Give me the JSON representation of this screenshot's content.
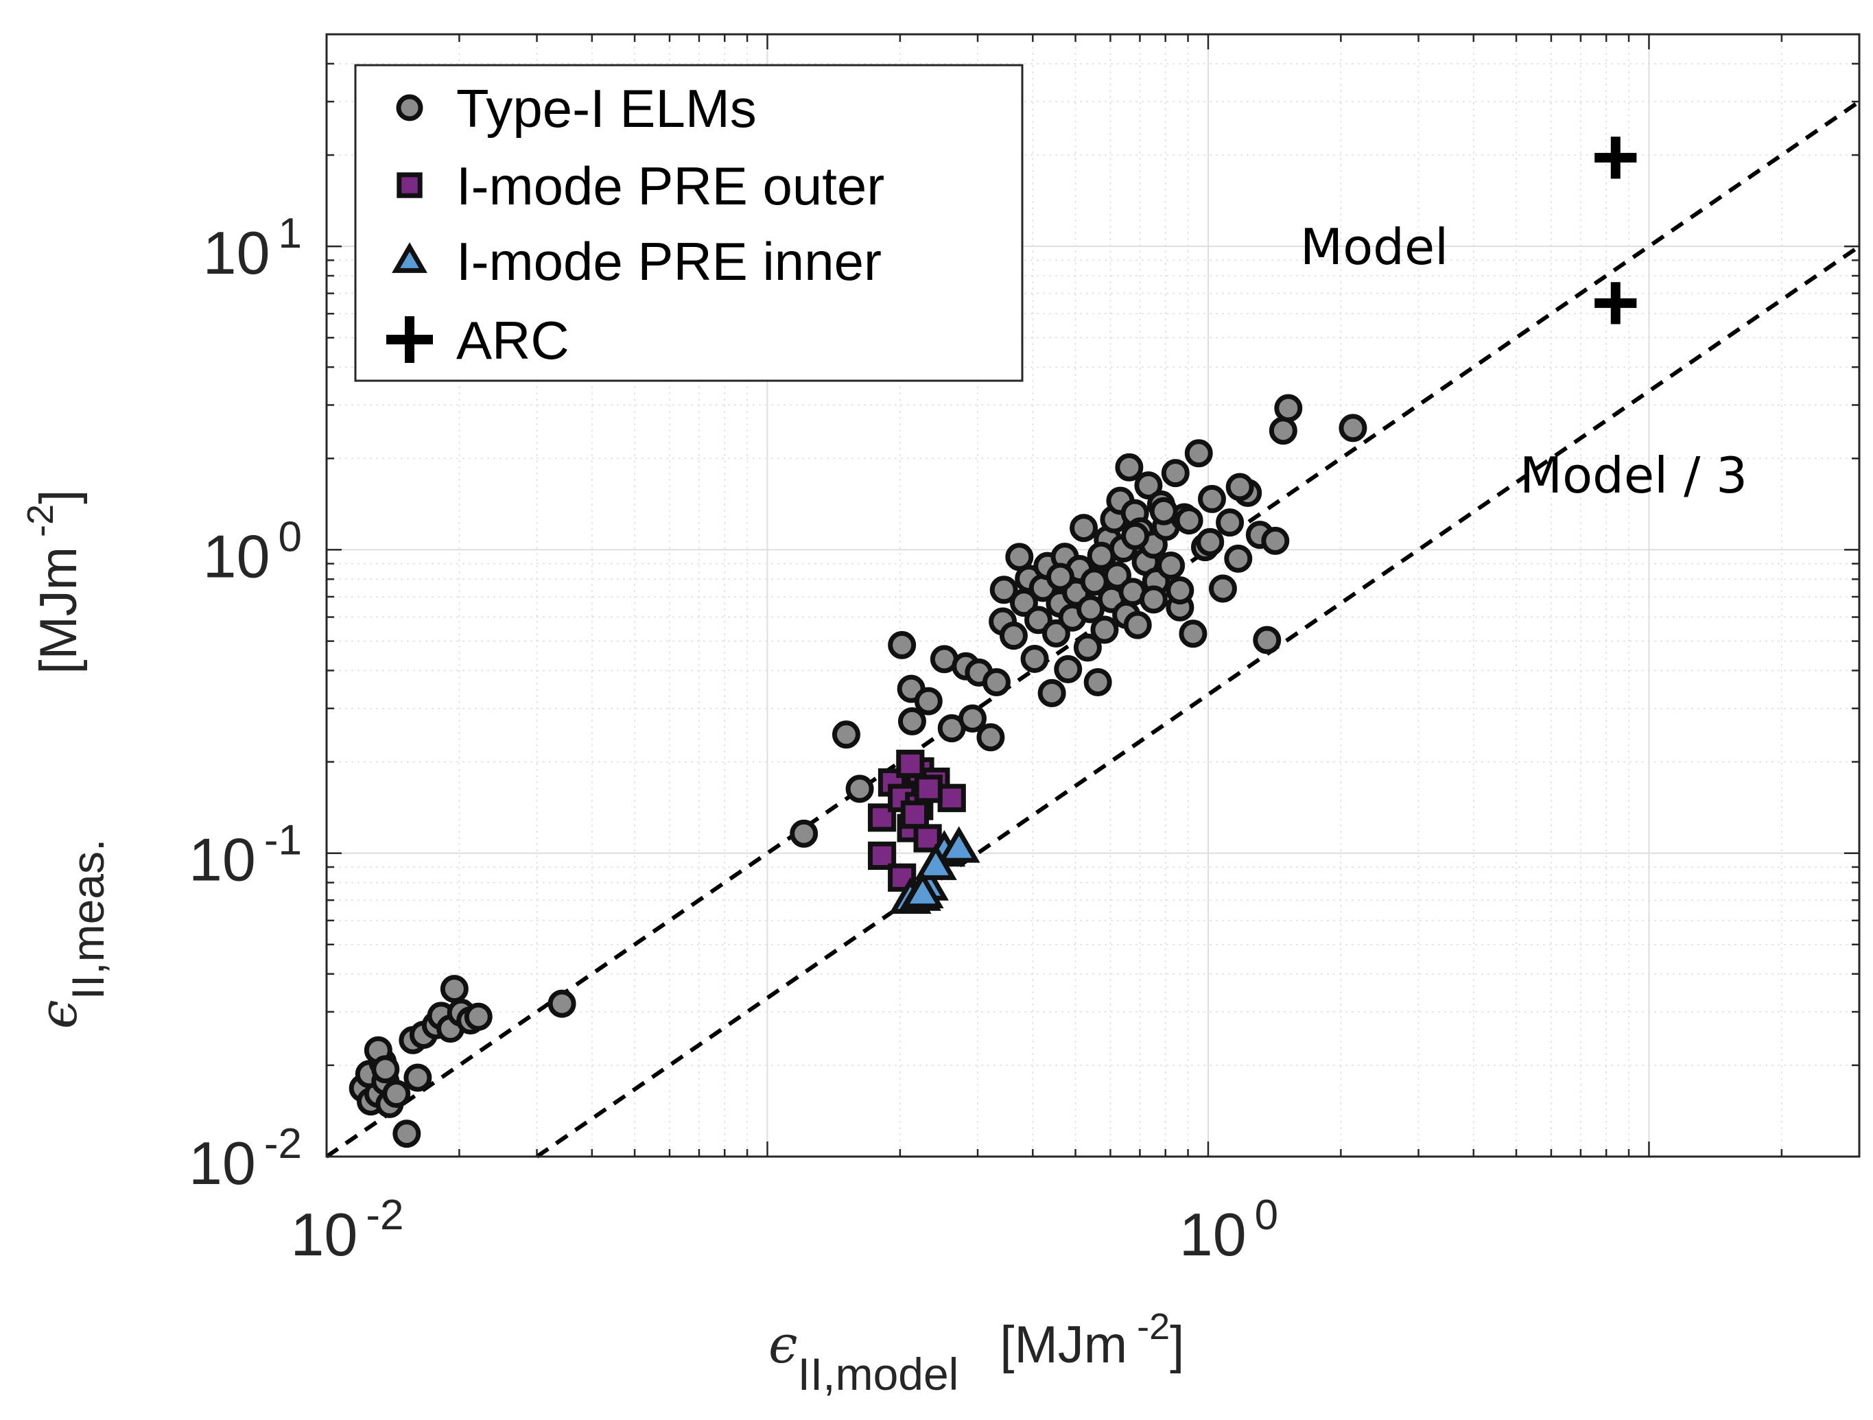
{
  "chart_data": {
    "type": "scatter",
    "xscale": "log",
    "yscale": "log",
    "xlim": [
      0.01,
      30
    ],
    "ylim": [
      0.01,
      50
    ],
    "grid": true,
    "xticks": [
      {
        "value": 0.01,
        "base": "10",
        "exp": "-2"
      },
      {
        "value": 1,
        "base": "10",
        "exp": "0"
      }
    ],
    "yticks": [
      {
        "value": 0.01,
        "base": "10",
        "exp": "-2"
      },
      {
        "value": 0.1,
        "base": "10",
        "exp": "-1"
      },
      {
        "value": 1,
        "base": "10",
        "exp": "0"
      },
      {
        "value": 10,
        "base": "10",
        "exp": "1"
      }
    ],
    "xlabel": {
      "symbol": "ϵ",
      "subscript": "II,model",
      "unit_open": "[MJm",
      "unit_exp": "-2",
      "unit_close": "]"
    },
    "ylabel": {
      "symbol": "ϵ",
      "subscript": "II,meas.",
      "unit_open": "[MJm",
      "unit_exp": "-2",
      "unit_close": "]"
    },
    "legend_position": "top-left",
    "legend": [
      {
        "label": "Type-I ELMs",
        "marker": "circle"
      },
      {
        "label": "I-mode PRE outer",
        "marker": "square"
      },
      {
        "label": "I-mode PRE inner",
        "marker": "triangle"
      },
      {
        "label": "ARC",
        "marker": "plus"
      }
    ],
    "lines": [
      {
        "name": "Model",
        "slope": 1,
        "label": "Model",
        "style": "dashed"
      },
      {
        "name": "Model / 3",
        "slope": 0.3333,
        "label": "Model / 3",
        "style": "dashed"
      }
    ],
    "colors": {
      "circle_fill": "#8c8c8c",
      "square_fill": "#7a2a82",
      "triangle_fill": "#5b9bd5",
      "edge": "#111111",
      "grid": "#dedede",
      "axis": "#262626"
    },
    "series": [
      {
        "name": "Type-I ELMs",
        "marker": "circle",
        "points": [
          [
            0.0121,
            0.0168
          ],
          [
            0.0126,
            0.0152
          ],
          [
            0.0131,
            0.0161
          ],
          [
            0.0125,
            0.0187
          ],
          [
            0.0134,
            0.0205
          ],
          [
            0.0131,
            0.0224
          ],
          [
            0.0136,
            0.0177
          ],
          [
            0.0139,
            0.0149
          ],
          [
            0.0144,
            0.0161
          ],
          [
            0.0136,
            0.0194
          ],
          [
            0.0152,
            0.0119
          ],
          [
            0.0157,
            0.0242
          ],
          [
            0.0161,
            0.0182
          ],
          [
            0.0166,
            0.0252
          ],
          [
            0.0177,
            0.0271
          ],
          [
            0.0182,
            0.0291
          ],
          [
            0.0191,
            0.0264
          ],
          [
            0.0195,
            0.0357
          ],
          [
            0.0202,
            0.0298
          ],
          [
            0.0212,
            0.0281
          ],
          [
            0.0221,
            0.0289
          ],
          [
            0.0342,
            0.0319
          ],
          [
            0.121,
            0.116
          ],
          [
            0.151,
            0.246
          ],
          [
            0.162,
            0.163
          ],
          [
            0.202,
            0.485
          ],
          [
            0.212,
            0.348
          ],
          [
            0.213,
            0.272
          ],
          [
            0.232,
            0.317
          ],
          [
            0.252,
            0.436
          ],
          [
            0.262,
            0.258
          ],
          [
            0.282,
            0.413
          ],
          [
            0.292,
            0.278
          ],
          [
            0.302,
            0.394
          ],
          [
            0.321,
            0.241
          ],
          [
            0.331,
            0.366
          ],
          [
            0.342,
            0.58
          ],
          [
            0.344,
            0.738
          ],
          [
            0.362,
            0.521
          ],
          [
            0.373,
            0.947
          ],
          [
            0.382,
            0.669
          ],
          [
            0.392,
            0.803
          ],
          [
            0.404,
            0.437
          ],
          [
            0.412,
            0.587
          ],
          [
            0.422,
            0.749
          ],
          [
            0.432,
            0.884
          ],
          [
            0.442,
            0.337
          ],
          [
            0.452,
            0.53
          ],
          [
            0.461,
            0.665
          ],
          [
            0.473,
            0.948
          ],
          [
            0.481,
            0.404
          ],
          [
            0.492,
            0.598
          ],
          [
            0.502,
            0.722
          ],
          [
            0.511,
            0.864
          ],
          [
            0.522,
            1.18
          ],
          [
            0.533,
            0.476
          ],
          [
            0.541,
            0.637
          ],
          [
            0.552,
            0.785
          ],
          [
            0.562,
            0.366
          ],
          [
            0.574,
            0.938
          ],
          [
            0.582,
            0.545
          ],
          [
            0.592,
            1.08
          ],
          [
            0.604,
            0.688
          ],
          [
            0.612,
            1.26
          ],
          [
            0.622,
            0.823
          ],
          [
            0.632,
            1.45
          ],
          [
            0.642,
            1.01
          ],
          [
            0.652,
            0.61
          ],
          [
            0.662,
            1.87
          ],
          [
            0.674,
            0.726
          ],
          [
            0.682,
            1.32
          ],
          [
            0.692,
            0.565
          ],
          [
            0.702,
            1.15
          ],
          [
            0.722,
            0.912
          ],
          [
            0.732,
            1.63
          ],
          [
            0.752,
            1.04
          ],
          [
            0.762,
            0.786
          ],
          [
            0.782,
            1.41
          ],
          [
            0.802,
            1.19
          ],
          [
            0.823,
            0.887
          ],
          [
            0.843,
            1.79
          ],
          [
            0.863,
            0.646
          ],
          [
            0.883,
            1.28
          ],
          [
            0.924,
            0.529
          ],
          [
            0.952,
            2.08
          ],
          [
            0.984,
            1.02
          ],
          [
            1.02,
            1.47
          ],
          [
            1.08,
            0.745
          ],
          [
            1.12,
            1.23
          ],
          [
            1.17,
            0.935
          ],
          [
            1.23,
            1.54
          ],
          [
            1.31,
            1.12
          ],
          [
            1.36,
            0.504
          ],
          [
            1.48,
            2.47
          ],
          [
            1.52,
            2.93
          ],
          [
            2.13,
            2.52
          ],
          [
            0.462,
            0.814
          ],
          [
            0.572,
            0.955
          ],
          [
            0.683,
            1.11
          ],
          [
            0.793,
            1.34
          ],
          [
            0.905,
            1.25
          ],
          [
            1.01,
            1.06
          ],
          [
            1.18,
            1.61
          ],
          [
            1.42,
            1.07
          ],
          [
            0.752,
            0.686
          ],
          [
            0.863,
            0.735
          ]
        ]
      },
      {
        "name": "I-mode PRE outer",
        "marker": "square",
        "points": [
          [
            0.182,
            0.131
          ],
          [
            0.192,
            0.171
          ],
          [
            0.202,
            0.152
          ],
          [
            0.212,
            0.121
          ],
          [
            0.222,
            0.186
          ],
          [
            0.231,
            0.112
          ],
          [
            0.241,
            0.172
          ],
          [
            0.262,
            0.152
          ],
          [
            0.211,
            0.197
          ],
          [
            0.182,
            0.0981
          ],
          [
            0.202,
            0.0831
          ],
          [
            0.221,
            0.143
          ],
          [
            0.232,
            0.163
          ],
          [
            0.216,
            0.134
          ]
        ]
      },
      {
        "name": "I-mode PRE inner",
        "marker": "triangle",
        "points": [
          [
            0.211,
            0.0706
          ],
          [
            0.222,
            0.0722
          ],
          [
            0.231,
            0.0781
          ],
          [
            0.252,
            0.101
          ],
          [
            0.272,
            0.104
          ],
          [
            0.241,
            0.0912
          ],
          [
            0.225,
            0.0736
          ]
        ]
      },
      {
        "name": "ARC",
        "marker": "plus",
        "points": [
          [
            8.4,
            19.6
          ],
          [
            8.4,
            6.5
          ]
        ]
      }
    ]
  }
}
